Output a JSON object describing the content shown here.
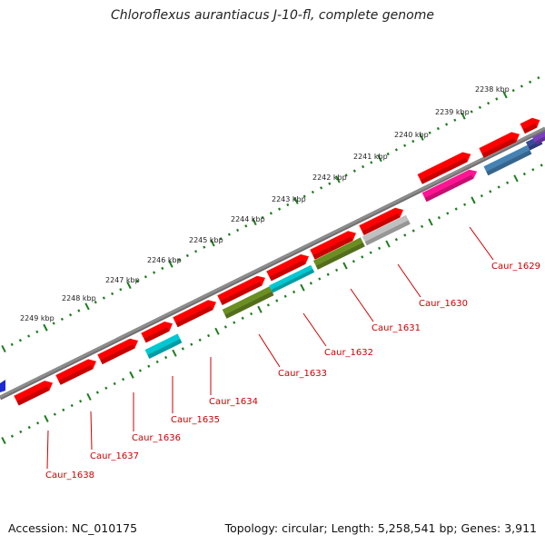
{
  "title": "Chloroflexus aurantiacus J-10-fl, complete genome",
  "footer": {
    "accession": "Accession: NC_010175",
    "topology": "Topology: circular; Length: 5,258,541 bp; Genes: 3,911"
  },
  "colors": {
    "backbone": "#8c8c8c",
    "tick": "#1e7d1e",
    "gene_label": "#cc0000",
    "leader": "#cc0000",
    "red": "#ff0000",
    "cyan": "#00c8d2",
    "olive": "#6b8e23",
    "grey": "#c0c0c0",
    "magenta": "#ff1493",
    "steelblue": "#4682b4",
    "navy": "#3a4a9a",
    "purple": "#7a3fbf",
    "blue": "#1e2ad2"
  },
  "kbp_labels": [
    "2238 kbp",
    "2239 kbp",
    "2240 kbp",
    "2241 kbp",
    "2242 kbp",
    "2243 kbp",
    "2244 kbp",
    "2245 kbp",
    "2246 kbp",
    "2247 kbp",
    "2248 kbp",
    "2249 kbp"
  ],
  "gene_labels": [
    "Caur_1629",
    "Caur_1630",
    "Caur_1631",
    "Caur_1632",
    "Caur_1633",
    "Caur_1634",
    "Caur_1635",
    "Caur_1636",
    "Caur_1637",
    "Caur_1638"
  ]
}
